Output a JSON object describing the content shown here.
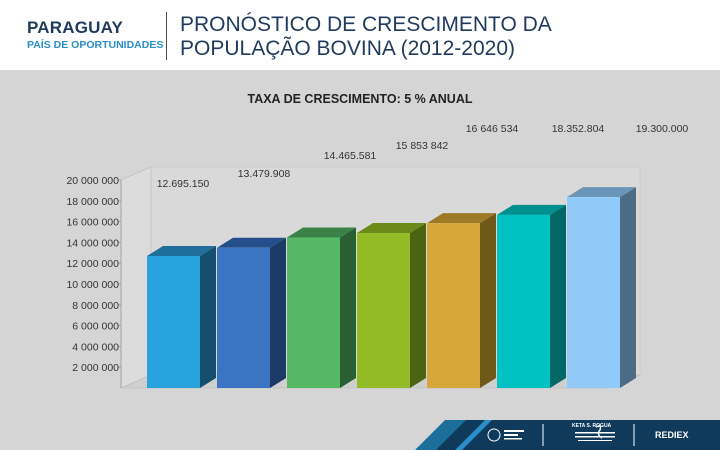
{
  "header": {
    "brand_name": "PARAGUAY",
    "brand_sub": "PAÍS DE OPORTUNIDADES",
    "title_line1": "PRONÓSTICO DE CRESCIMENTO DA",
    "title_line2": "POPULAÇÃO BOVINA (2012-2020)"
  },
  "footer": {
    "logo2_text": "KETA S. ROGUA",
    "logo3_text": "REDIEX"
  },
  "colors": {
    "header_text": "#1f3a5c",
    "brand_accent": "#2a8fc9",
    "panel_bg": "#d5d5d5"
  },
  "chart_data": {
    "type": "bar",
    "title": "TAXA DE CRESCIMENTO: 5 % ANUAL",
    "xlabel": "",
    "ylabel": "",
    "ylim": [
      0,
      20000000
    ],
    "grid": false,
    "legend": "none",
    "yticks": [
      {
        "value": 2000000,
        "label": "2 000 000"
      },
      {
        "value": 4000000,
        "label": "4 000 000"
      },
      {
        "value": 6000000,
        "label": "6 000 000"
      },
      {
        "value": 8000000,
        "label": "8 000 000"
      },
      {
        "value": 10000000,
        "label": "10 000 000"
      },
      {
        "value": 12000000,
        "label": "12 000 000"
      },
      {
        "value": 14000000,
        "label": "14 000 000"
      },
      {
        "value": 16000000,
        "label": "16 000 000"
      },
      {
        "value": 18000000,
        "label": "18 000 000"
      },
      {
        "value": 20000000,
        "label": "20 000 000"
      }
    ],
    "values": [
      12695150,
      13479908,
      14465581,
      14900000,
      15853842,
      16646534,
      18352804
    ],
    "data_labels": [
      "12.695.150",
      "13.479.908",
      "14.465.581",
      "",
      "15 853 842",
      "16 646 534",
      "18.352.804"
    ],
    "extra_label": "19.300.000",
    "colors": [
      "#29a3de",
      "#3a74c2",
      "#55b865",
      "#92bb25",
      "#d7a73a",
      "#00c2c2",
      "#8fcaf9"
    ],
    "top_colors": [
      "#1f6f9a",
      "#254e8c",
      "#3b8248",
      "#6a8a1a",
      "#9c7a26",
      "#00908f",
      "#6a95b8"
    ],
    "side_colors": [
      "#164f6e",
      "#1b3a66",
      "#2a5e33",
      "#4c6412",
      "#70571a",
      "#006968",
      "#4c6c86"
    ]
  }
}
